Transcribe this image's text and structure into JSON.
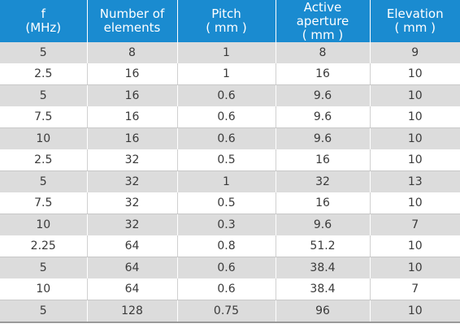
{
  "table": {
    "headers": [
      {
        "l1": "f",
        "l2": "(MHz)"
      },
      {
        "l1": "Number of",
        "l2": "elements"
      },
      {
        "l1": "Pitch",
        "l2": "( mm )"
      },
      {
        "l1": "Active aperture",
        "l2": "( mm )"
      },
      {
        "l1": "Elevation",
        "l2": "( mm )"
      }
    ],
    "rows": [
      [
        "5",
        "8",
        "1",
        "8",
        "9"
      ],
      [
        "2.5",
        "16",
        "1",
        "16",
        "10"
      ],
      [
        "5",
        "16",
        "0.6",
        "9.6",
        "10"
      ],
      [
        "7.5",
        "16",
        "0.6",
        "9.6",
        "10"
      ],
      [
        "10",
        "16",
        "0.6",
        "9.6",
        "10"
      ],
      [
        "2.5",
        "32",
        "0.5",
        "16",
        "10"
      ],
      [
        "5",
        "32",
        "1",
        "32",
        "13"
      ],
      [
        "7.5",
        "32",
        "0.5",
        "16",
        "10"
      ],
      [
        "10",
        "32",
        "0.3",
        "9.6",
        "7"
      ],
      [
        "2.25",
        "64",
        "0.8",
        "51.2",
        "10"
      ],
      [
        "5",
        "64",
        "0.6",
        "38.4",
        "10"
      ],
      [
        "10",
        "64",
        "0.6",
        "38.4",
        "7"
      ],
      [
        "5",
        "128",
        "0.75",
        "96",
        "10"
      ]
    ]
  },
  "colors": {
    "header_bg": "#1a8bd0",
    "header_text": "#ffffff",
    "stripe_bg": "#dcdcdc",
    "body_text": "#3a3a3a"
  }
}
